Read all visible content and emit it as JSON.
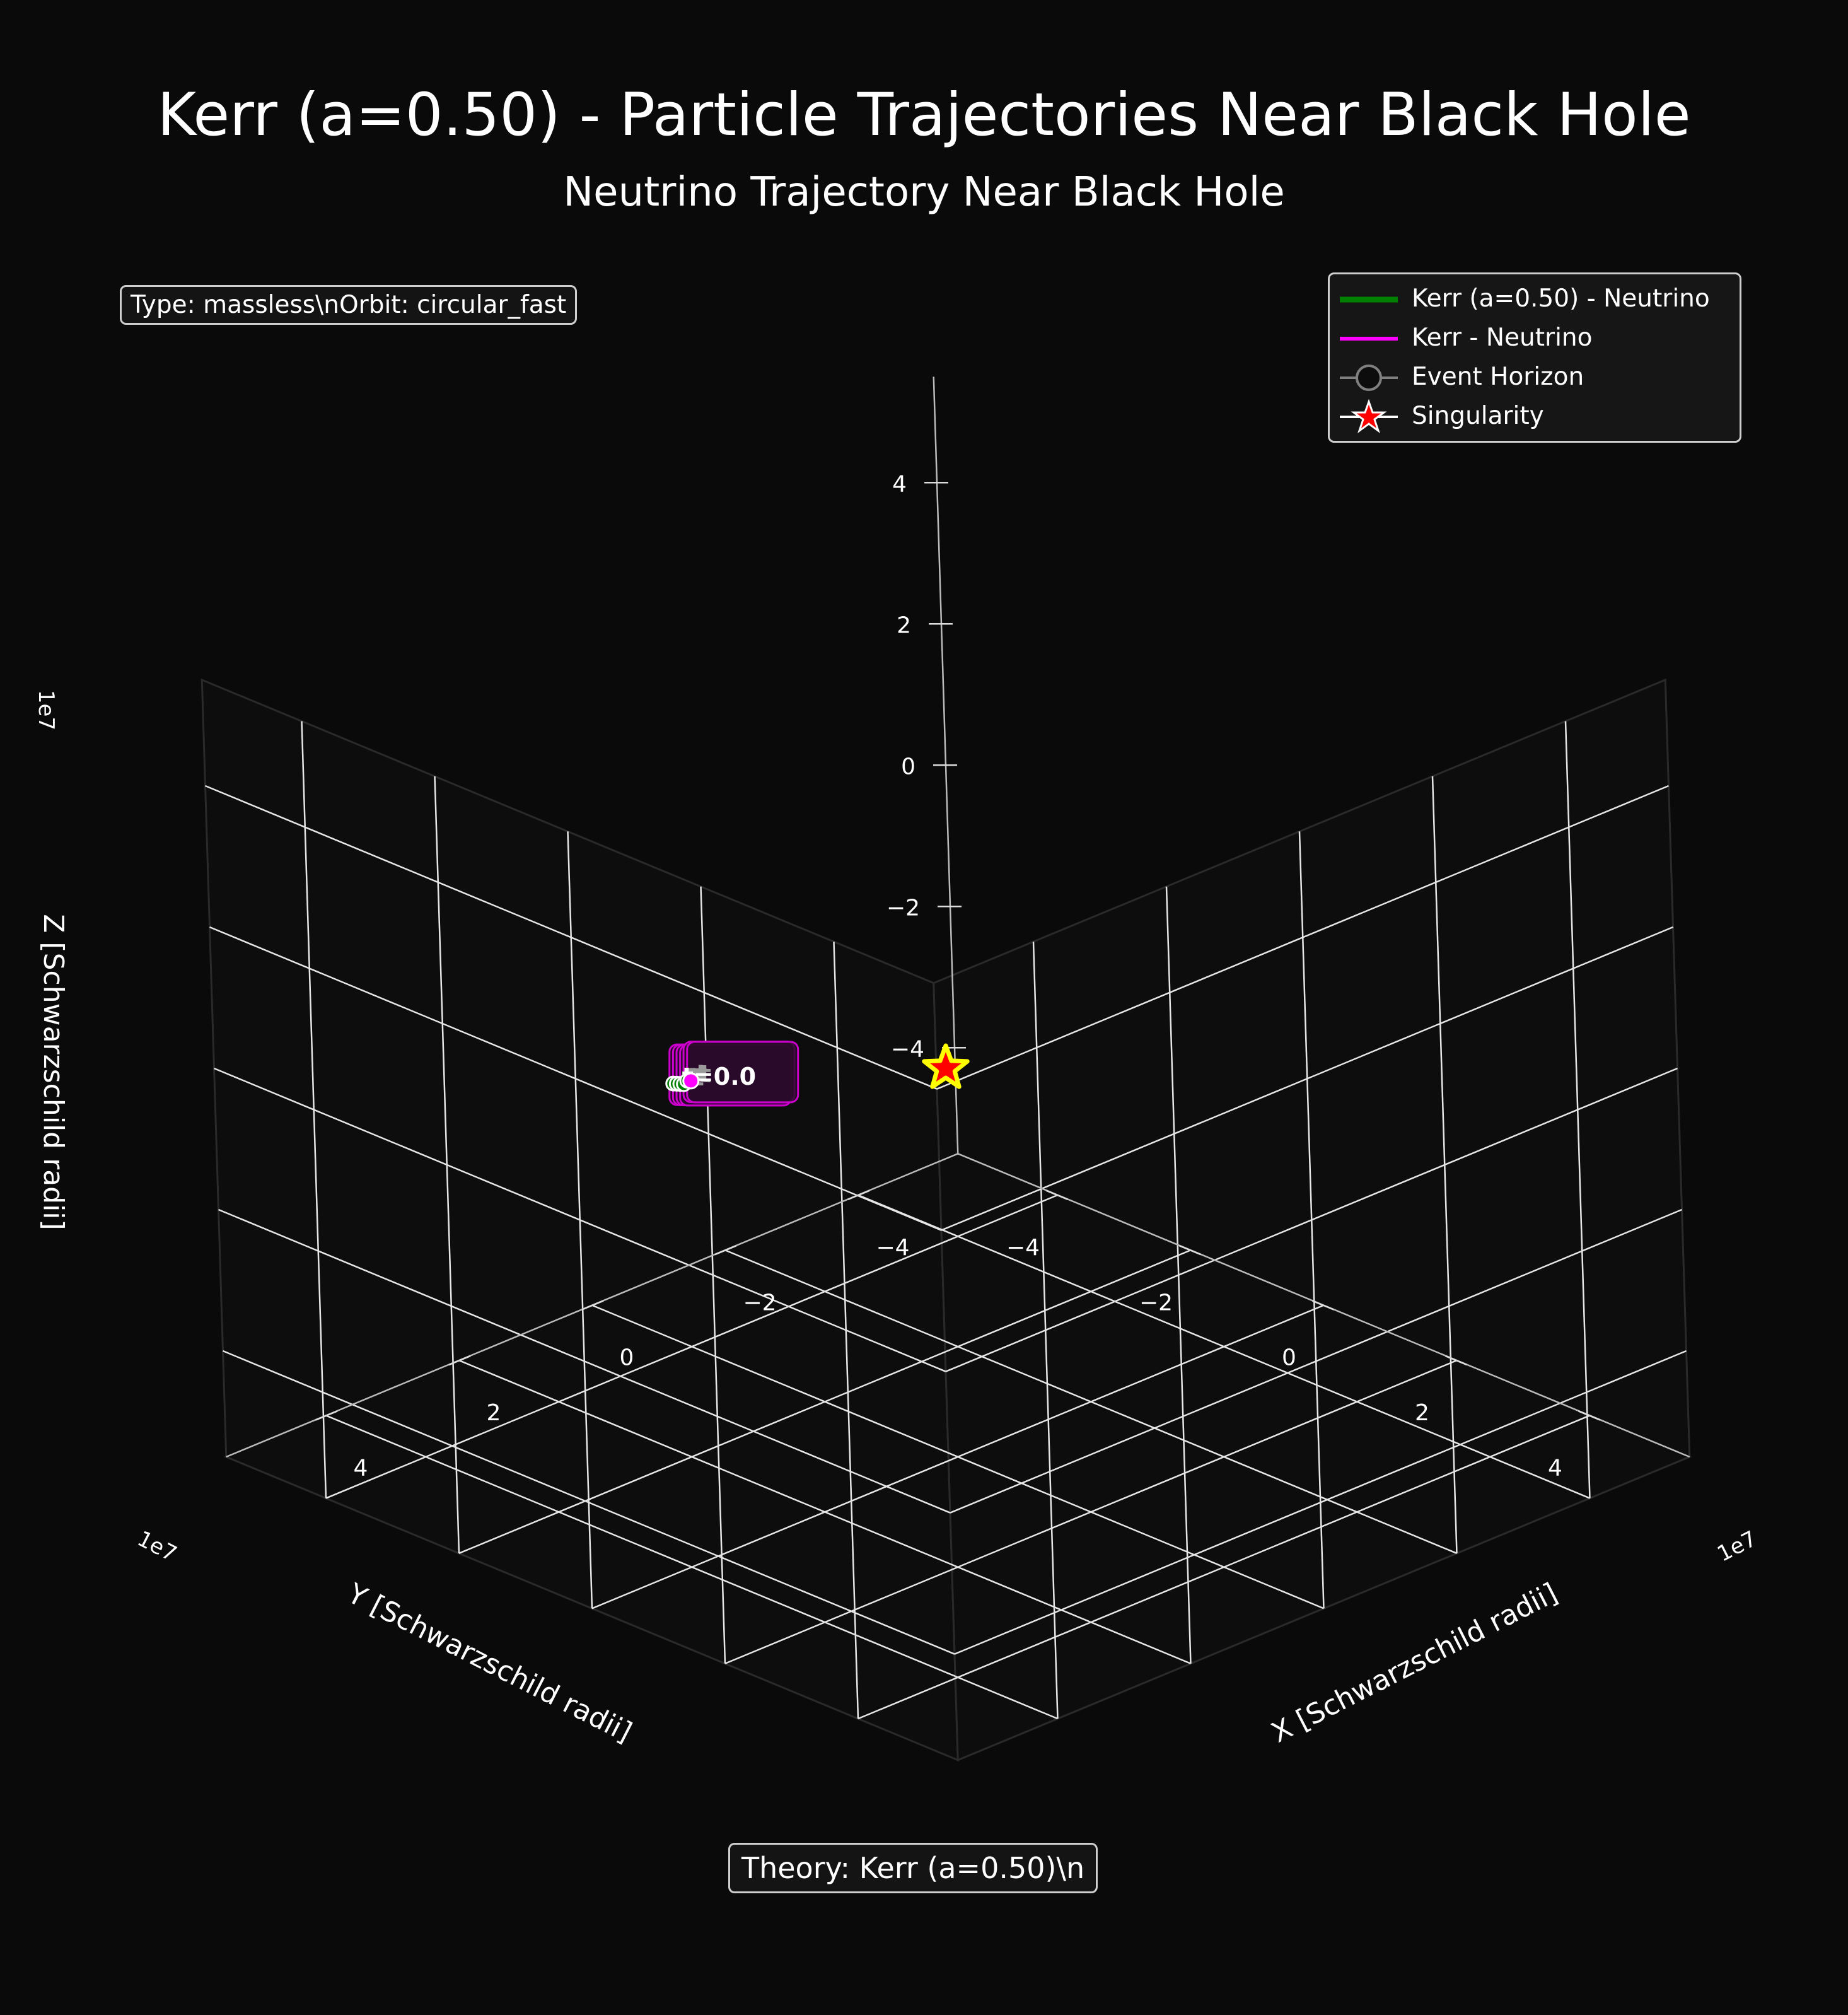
{
  "figure": {
    "title": "Kerr (a=0.50) - Particle Trajectories Near Black Hole",
    "subtitle": "Neutrino Trajectory Near Black Hole",
    "info_box": "Type: massless\\nOrbit: circular_fast",
    "theory_box": "Theory: Kerr (a=0.50)\\n"
  },
  "legend": {
    "items": [
      {
        "label": "Kerr (a=0.50) - Neutrino",
        "marker": "line",
        "color": "#008000"
      },
      {
        "label": "Kerr - Neutrino",
        "marker": "line",
        "color": "#ff00ff"
      },
      {
        "label": "Event Horizon",
        "marker": "circle",
        "color": "#808080"
      },
      {
        "label": "Singularity",
        "marker": "star",
        "color": "#ff0000"
      }
    ]
  },
  "chart_data": {
    "type": "scatter",
    "projection": "3d",
    "title": "Neutrino Trajectory Near Black Hole",
    "xlabel": "X [Schwarzschild radii]",
    "ylabel": "Y [Schwarzschild radii]",
    "zlabel": "Z [Schwarzschild radii]",
    "x_ticks": [
      "−4",
      "−2",
      "0",
      "2",
      "4"
    ],
    "y_ticks": [
      "−4",
      "−2",
      "0",
      "2",
      "4"
    ],
    "z_ticks": [
      "−4",
      "−2",
      "0",
      "2",
      "4"
    ],
    "x_tick_values": [
      -4,
      -2,
      0,
      2,
      4
    ],
    "y_tick_values": [
      -4,
      -2,
      0,
      2,
      4
    ],
    "z_tick_values": [
      -4,
      -2,
      0,
      2,
      4
    ],
    "x_offset": "1e7",
    "y_offset": "1e7",
    "z_offset": "1e7",
    "xlim": [
      -5.5,
      5.5
    ],
    "ylim": [
      -5.5,
      5.5
    ],
    "zlim": [
      -5.5,
      5.5
    ],
    "grid": true,
    "legend_position": "upper right",
    "series": [
      {
        "name": "Kerr (a=0.50) - Neutrino",
        "color": "#008000",
        "x": [
          0.3,
          0.15,
          0.0,
          -0.15,
          -0.3,
          -0.45
        ],
        "y": [
          -3.85,
          -3.95,
          -4.05,
          -4.15,
          -4.25,
          -4.35
        ],
        "z": [
          -1.6,
          -1.7,
          -1.8,
          -1.9,
          -1.95,
          -2.05
        ],
        "point_labels": [
          "t=0.0",
          "t",
          "t",
          "t",
          "t",
          "t"
        ]
      },
      {
        "name": "Kerr - Neutrino",
        "color": "#ff00ff",
        "x": [
          -0.45
        ],
        "y": [
          -4.35
        ],
        "z": [
          -2.05
        ]
      }
    ],
    "singularity": {
      "x": 0,
      "y": 0,
      "z": 0,
      "color": "#ff0000",
      "edge": "#ffff00"
    }
  }
}
